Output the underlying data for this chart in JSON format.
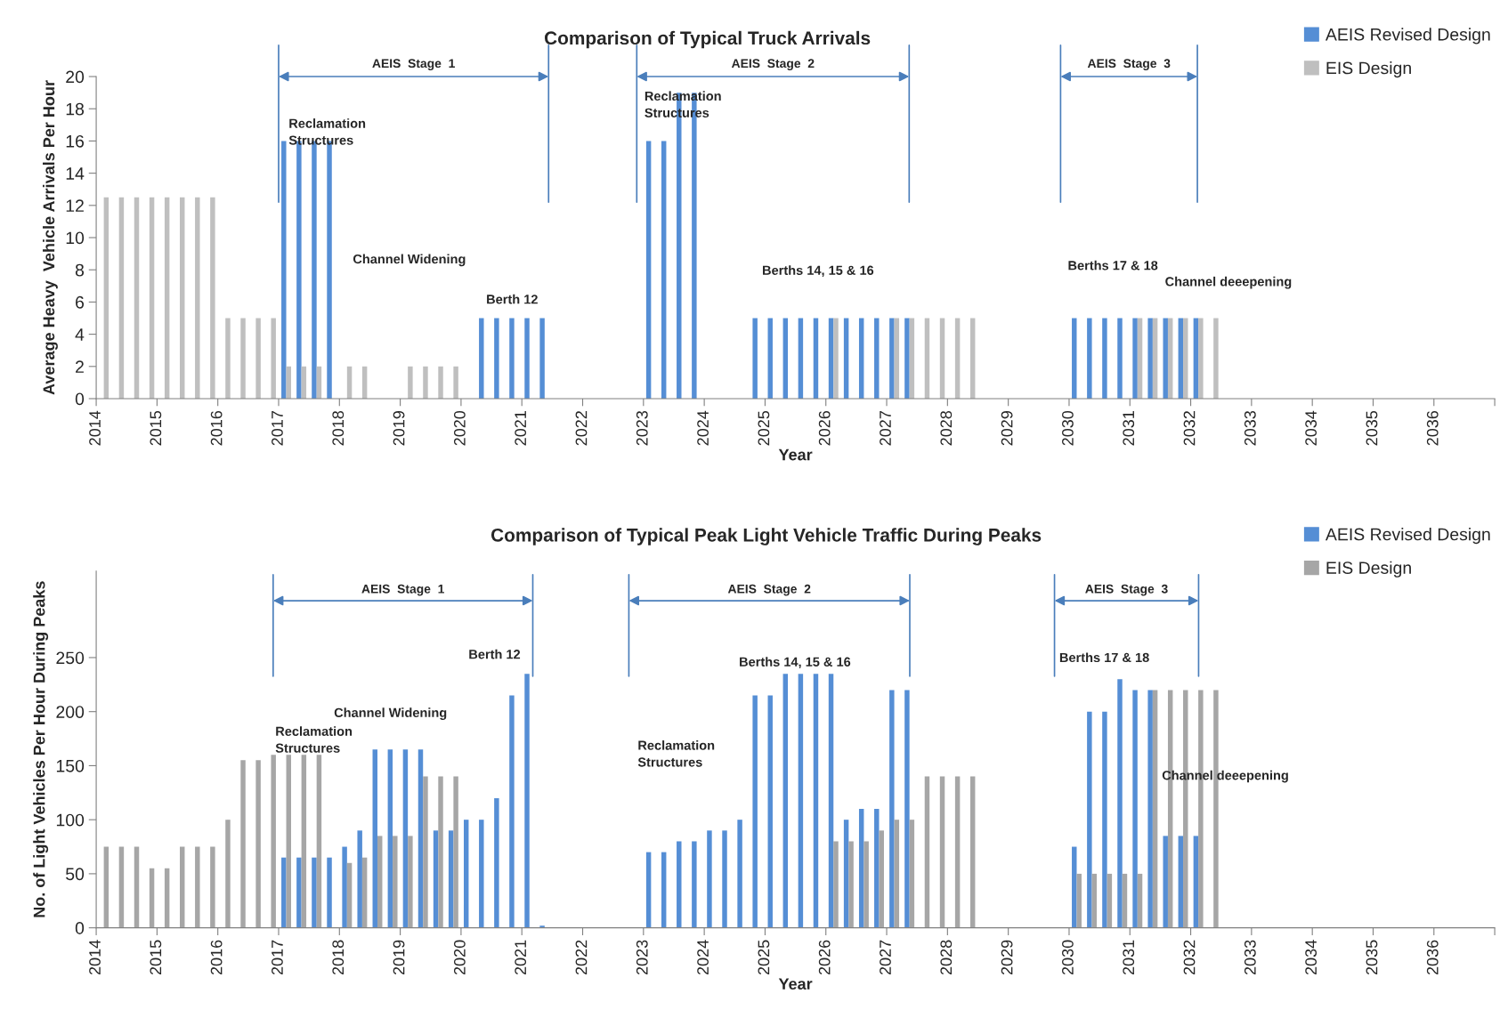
{
  "chart_data": [
    {
      "type": "bar",
      "title": "Comparison of Typical Truck Arrivals",
      "xlabel": "Year",
      "ylabel": "Average Heavy  Vehicle Arrivals Per Hour",
      "x": [
        2014.125,
        2014.375,
        2014.625,
        2014.875,
        2015.125,
        2015.375,
        2015.625,
        2015.875,
        2016.125,
        2016.375,
        2016.625,
        2016.875,
        2017.125,
        2017.375,
        2017.625,
        2017.875,
        2018.125,
        2018.375,
        2018.625,
        2018.875,
        2019.125,
        2019.375,
        2019.625,
        2019.875,
        2020.125,
        2020.375,
        2020.625,
        2020.875,
        2021.125,
        2021.375,
        2021.625,
        2021.875,
        2022.125,
        2022.375,
        2022.625,
        2022.875,
        2023.125,
        2023.375,
        2023.625,
        2023.875,
        2024.125,
        2024.375,
        2024.625,
        2024.875,
        2025.125,
        2025.375,
        2025.625,
        2025.875,
        2026.125,
        2026.375,
        2026.625,
        2026.875,
        2027.125,
        2027.375,
        2027.625,
        2027.875,
        2028.125,
        2028.375,
        2028.625,
        2028.875,
        2029.125,
        2029.375,
        2029.625,
        2029.875,
        2030.125,
        2030.375,
        2030.625,
        2030.875,
        2031.125,
        2031.375,
        2031.625,
        2031.875,
        2032.125,
        2032.375
      ],
      "series": [
        {
          "name": "AEIS Revised Design",
          "color": "#558ed5",
          "values": [
            null,
            null,
            null,
            null,
            null,
            null,
            null,
            null,
            null,
            null,
            null,
            null,
            16,
            16,
            16,
            16,
            null,
            null,
            null,
            null,
            null,
            null,
            null,
            null,
            null,
            5,
            5,
            5,
            5,
            5,
            null,
            null,
            null,
            null,
            null,
            null,
            16,
            16,
            19,
            19,
            null,
            null,
            null,
            5,
            5,
            5,
            5,
            5,
            5,
            5,
            5,
            5,
            5,
            5,
            null,
            null,
            null,
            null,
            null,
            null,
            null,
            null,
            null,
            null,
            5,
            5,
            5,
            5,
            5,
            5,
            5,
            5,
            5,
            null
          ]
        },
        {
          "name": "EIS Design",
          "color": "#bfbfbf",
          "values": [
            12.5,
            12.5,
            12.5,
            12.5,
            12.5,
            12.5,
            12.5,
            12.5,
            5,
            5,
            5,
            5,
            2,
            2,
            2,
            null,
            2,
            2,
            null,
            null,
            2,
            2,
            2,
            2,
            null,
            null,
            null,
            null,
            null,
            null,
            null,
            null,
            null,
            null,
            null,
            null,
            null,
            null,
            null,
            null,
            null,
            null,
            null,
            null,
            null,
            null,
            null,
            null,
            5,
            null,
            null,
            null,
            5,
            5,
            5,
            5,
            5,
            5,
            null,
            null,
            null,
            null,
            null,
            null,
            null,
            null,
            null,
            null,
            5,
            5,
            5,
            5,
            5,
            5
          ]
        }
      ],
      "xlim": [
        2014,
        2037
      ],
      "xticks": [
        2014,
        2015,
        2016,
        2017,
        2018,
        2019,
        2020,
        2021,
        2022,
        2023,
        2024,
        2025,
        2026,
        2027,
        2028,
        2029,
        2030,
        2031,
        2032,
        2033,
        2034,
        2035,
        2036,
        {
          "value": 2037,
          "label": null
        }
      ],
      "ylim": [
        0,
        20
      ],
      "yticks": [
        0,
        2,
        4,
        6,
        8,
        10,
        12,
        14,
        16,
        18,
        20
      ],
      "legend": "top right",
      "ref_lines": [
        {
          "axis": "x",
          "value": 2017.0,
          "color": "#4a7ebb"
        },
        {
          "axis": "x",
          "value": 2021.44,
          "color": "#4a7ebb"
        },
        {
          "axis": "x",
          "value": 2022.89,
          "color": "#4a7ebb"
        },
        {
          "axis": "x",
          "value": 2027.37,
          "color": "#4a7ebb"
        },
        {
          "axis": "x",
          "value": 2029.86,
          "color": "#4a7ebb"
        },
        {
          "axis": "x",
          "value": 2032.11,
          "color": "#4a7ebb"
        }
      ],
      "annotations": [
        "AEIS  Stage  1",
        "AEIS  Stage  2",
        "AEIS  Stage  3",
        "Reclamation\nStructures",
        "Channel Widening",
        "Berth 12",
        "Reclamation\nStructures",
        "Berths 14, 15 & 16",
        "Berths 17 & 18",
        "Channel deeepening"
      ]
    },
    {
      "type": "bar",
      "title": "Comparison of Typical Peak Light Vehicle Traffic During Peaks",
      "xlabel": "Year",
      "ylabel": "No. of Light Vehicles Per Hour During Peaks",
      "x": [
        2014.125,
        2014.375,
        2014.625,
        2014.875,
        2015.125,
        2015.375,
        2015.625,
        2015.875,
        2016.125,
        2016.375,
        2016.625,
        2016.875,
        2017.125,
        2017.375,
        2017.625,
        2017.875,
        2018.125,
        2018.375,
        2018.625,
        2018.875,
        2019.125,
        2019.375,
        2019.625,
        2019.875,
        2020.125,
        2020.375,
        2020.625,
        2020.875,
        2021.125,
        2021.375,
        2021.625,
        2021.875,
        2022.125,
        2022.375,
        2022.625,
        2022.875,
        2023.125,
        2023.375,
        2023.625,
        2023.875,
        2024.125,
        2024.375,
        2024.625,
        2024.875,
        2025.125,
        2025.375,
        2025.625,
        2025.875,
        2026.125,
        2026.375,
        2026.625,
        2026.875,
        2027.125,
        2027.375,
        2027.625,
        2027.875,
        2028.125,
        2028.375,
        2028.625,
        2028.875,
        2029.125,
        2029.375,
        2029.625,
        2029.875,
        2030.125,
        2030.375,
        2030.625,
        2030.875,
        2031.125,
        2031.375,
        2031.625,
        2031.875,
        2032.125,
        2032.375
      ],
      "series": [
        {
          "name": "AEIS Revised Design",
          "color": "#558ed5",
          "values": [
            null,
            null,
            null,
            null,
            null,
            null,
            null,
            null,
            null,
            null,
            null,
            null,
            65,
            65,
            65,
            65,
            75,
            90,
            165,
            165,
            165,
            165,
            90,
            90,
            100,
            100,
            120,
            215,
            235,
            2,
            null,
            null,
            null,
            null,
            null,
            null,
            70,
            70,
            80,
            80,
            90,
            90,
            100,
            215,
            215,
            235,
            235,
            235,
            235,
            100,
            110,
            110,
            220,
            220,
            null,
            null,
            null,
            null,
            null,
            null,
            null,
            null,
            null,
            null,
            75,
            200,
            200,
            230,
            220,
            220,
            85,
            85,
            85,
            null
          ]
        },
        {
          "name": "EIS Design",
          "color": "#a6a6a6",
          "values": [
            75,
            75,
            75,
            55,
            55,
            75,
            75,
            75,
            100,
            155,
            155,
            160,
            160,
            160,
            160,
            null,
            60,
            65,
            85,
            85,
            85,
            140,
            140,
            140,
            null,
            null,
            null,
            null,
            null,
            null,
            null,
            null,
            null,
            null,
            null,
            null,
            null,
            null,
            null,
            null,
            null,
            null,
            null,
            null,
            null,
            null,
            null,
            null,
            80,
            80,
            80,
            90,
            100,
            100,
            140,
            140,
            140,
            140,
            null,
            null,
            null,
            null,
            null,
            null,
            50,
            50,
            50,
            50,
            50,
            220,
            220,
            220,
            220,
            220
          ]
        }
      ],
      "xlim": [
        2014,
        2037
      ],
      "xticks": [
        2014,
        2015,
        2016,
        2017,
        2018,
        2019,
        2020,
        2021,
        2022,
        2023,
        2024,
        2025,
        2026,
        2027,
        2028,
        2029,
        2030,
        2031,
        2032,
        2033,
        2034,
        2035,
        2036,
        {
          "value": 2037,
          "label": null
        }
      ],
      "ylim": [
        0,
        330
      ],
      "yticks": [
        0,
        50,
        100,
        150,
        200,
        250
      ],
      "legend": "top right",
      "ref_lines": [
        {
          "axis": "x",
          "value": 2016.91,
          "color": "#4a7ebb"
        },
        {
          "axis": "x",
          "value": 2021.18,
          "color": "#4a7ebb"
        },
        {
          "axis": "x",
          "value": 2022.76,
          "color": "#4a7ebb"
        },
        {
          "axis": "x",
          "value": 2027.38,
          "color": "#4a7ebb"
        },
        {
          "axis": "x",
          "value": 2029.76,
          "color": "#4a7ebb"
        },
        {
          "axis": "x",
          "value": 2032.13,
          "color": "#4a7ebb"
        }
      ],
      "annotations": [
        "AEIS  Stage  1",
        "AEIS  Stage  2",
        "AEIS  Stage  3",
        "Reclamation\nStructures",
        "Channel Widening",
        "Berth 12",
        "Berths 14, 15 & 16",
        "Reclamation\nStructures",
        "Berths 17 & 18",
        "Channel deeepening"
      ]
    }
  ]
}
